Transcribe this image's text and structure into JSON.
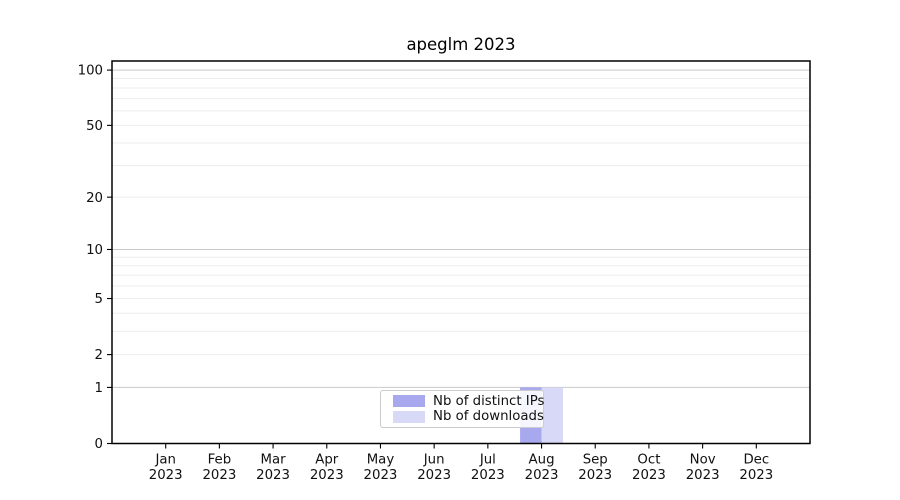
{
  "chart_data": {
    "type": "bar",
    "title": "apeglm 2023",
    "categories": [
      {
        "month": "Jan",
        "year": "2023"
      },
      {
        "month": "Feb",
        "year": "2023"
      },
      {
        "month": "Mar",
        "year": "2023"
      },
      {
        "month": "Apr",
        "year": "2023"
      },
      {
        "month": "May",
        "year": "2023"
      },
      {
        "month": "Jun",
        "year": "2023"
      },
      {
        "month": "Jul",
        "year": "2023"
      },
      {
        "month": "Aug",
        "year": "2023"
      },
      {
        "month": "Sep",
        "year": "2023"
      },
      {
        "month": "Oct",
        "year": "2023"
      },
      {
        "month": "Nov",
        "year": "2023"
      },
      {
        "month": "Dec",
        "year": "2023"
      }
    ],
    "series": [
      {
        "name": "Nb of distinct IPs",
        "color": "#a8a8ef",
        "values": [
          0,
          0,
          0,
          0,
          0,
          0,
          0,
          1,
          0,
          0,
          0,
          0
        ]
      },
      {
        "name": "Nb of downloads",
        "color": "#d8d8f7",
        "values": [
          0,
          0,
          0,
          0,
          0,
          0,
          0,
          1,
          0,
          0,
          0,
          0
        ]
      }
    ],
    "yaxis": {
      "scale": "log1p",
      "tick_values": [
        0,
        1,
        2,
        5,
        10,
        20,
        50,
        100
      ],
      "ymax": 112,
      "major_gridlines": [
        1,
        10,
        100
      ],
      "minor_gridlines": [
        2,
        3,
        4,
        5,
        6,
        7,
        8,
        9,
        20,
        30,
        40,
        50,
        60,
        70,
        80,
        90
      ]
    },
    "xlabel": "",
    "ylabel": "",
    "legend_position": "lower center",
    "grid": true,
    "colors": {
      "axis": "#000000",
      "grid_major": "#c9c9c9",
      "grid_minor": "#ededed",
      "tick_text": "#111111"
    }
  }
}
